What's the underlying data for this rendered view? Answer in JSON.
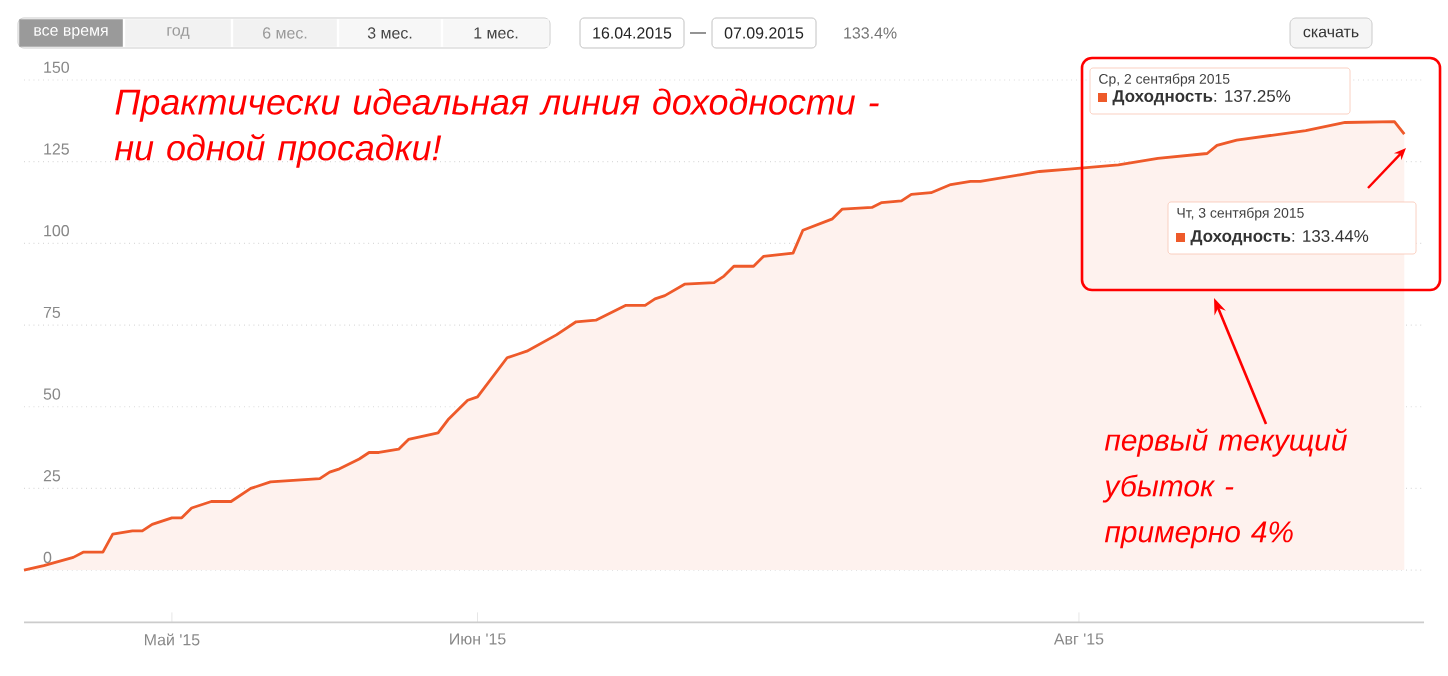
{
  "chart_data": {
    "type": "area",
    "color": "#ee5a2a",
    "grid": "y",
    "xlim": [
      "2015-04-16",
      "2015-09-05"
    ],
    "xticks": [
      {
        "value": "2015-05-01",
        "label": "Май '15"
      },
      {
        "value": "2015-06-01",
        "label": "Июн '15"
      },
      {
        "value": "2015-08-01",
        "label": "Авг '15"
      }
    ],
    "ylim": [
      -16,
      150
    ],
    "yticks": [
      0,
      25,
      50,
      75,
      100,
      125,
      150
    ],
    "x": [
      "2015-04-16",
      "2015-04-18",
      "2015-04-21",
      "2015-04-22",
      "2015-04-24",
      "2015-04-25",
      "2015-04-27",
      "2015-04-28",
      "2015-04-29",
      "2015-05-01",
      "2015-05-02",
      "2015-05-03",
      "2015-05-05",
      "2015-05-07",
      "2015-05-09",
      "2015-05-10",
      "2015-05-11",
      "2015-05-16",
      "2015-05-17",
      "2015-05-18",
      "2015-05-20",
      "2015-05-21",
      "2015-05-22",
      "2015-05-24",
      "2015-05-25",
      "2015-05-28",
      "2015-05-29",
      "2015-05-31",
      "2015-06-01",
      "2015-06-02",
      "2015-06-04",
      "2015-06-05",
      "2015-06-06",
      "2015-06-09",
      "2015-06-11",
      "2015-06-13",
      "2015-06-16",
      "2015-06-18",
      "2015-06-19",
      "2015-06-20",
      "2015-06-22",
      "2015-06-25",
      "2015-06-26",
      "2015-06-27",
      "2015-06-29",
      "2015-06-30",
      "2015-07-03",
      "2015-07-04",
      "2015-07-07",
      "2015-07-08",
      "2015-07-11",
      "2015-07-12",
      "2015-07-14",
      "2015-07-15",
      "2015-07-17",
      "2015-07-19",
      "2015-07-21",
      "2015-07-22",
      "2015-07-26",
      "2015-07-28",
      "2015-07-31",
      "2015-08-05",
      "2015-08-09",
      "2015-08-14",
      "2015-08-15",
      "2015-08-17",
      "2015-08-24",
      "2015-08-28",
      "2015-09-02",
      "2015-09-03"
    ],
    "values": [
      0,
      1.4,
      3.9,
      5.5,
      5.5,
      11,
      12,
      12,
      14,
      16,
      16,
      19,
      21,
      21,
      25,
      26,
      27,
      28,
      30,
      31,
      34,
      36,
      36,
      37,
      40,
      42,
      46,
      52,
      53,
      57,
      65,
      66,
      67,
      72,
      76,
      76.5,
      81,
      81,
      83,
      84,
      87.5,
      88,
      90,
      93,
      93,
      96,
      97,
      104,
      107.5,
      110.5,
      111,
      112.5,
      113,
      115,
      115.5,
      118,
      119,
      119,
      121,
      122,
      122.7,
      124,
      126,
      127.5,
      130,
      131.6,
      134.5,
      137,
      137.25,
      133.44
    ],
    "annotations": [
      "все время",
      "год",
      "6 мес.",
      "3 мес.",
      "1 мес.",
      "16.04.2015",
      "07.09.2015",
      "133.4%",
      "скачать",
      "Практически идеальная линия доходности - ни одной просадки!",
      "Ср, 2 сентября 2015",
      "**Доходность**: 137.25%",
      "Чт, 3 сентября 2015",
      "**Доходность**: 133.44%",
      "первый текущий убыток - примерно 4%"
    ]
  }
}
